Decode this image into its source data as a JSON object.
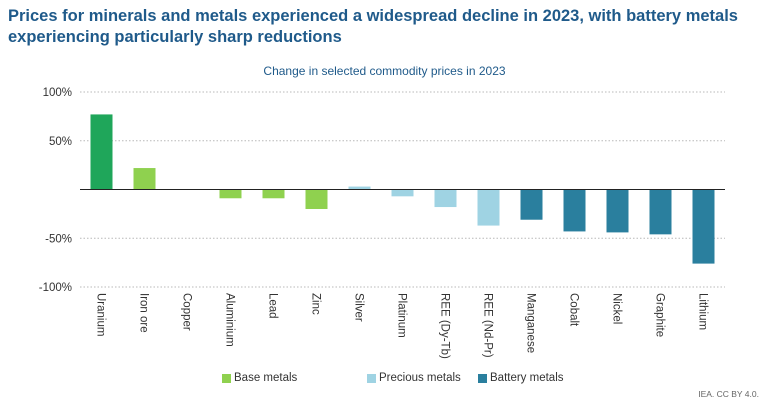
{
  "title": "Prices for minerals and metals experienced a widespread decline in 2023, with battery metals experiencing particularly sharp reductions",
  "credit": "IEA. CC BY 4.0.",
  "chart_data": {
    "type": "bar",
    "title": "Change in selected commodity prices in 2023",
    "xlabel": "",
    "ylabel": "",
    "ylim": [
      -100,
      100
    ],
    "yticks": [
      100,
      50,
      0,
      -50,
      -100
    ],
    "ytick_labels": [
      "100%",
      "50%",
      "",
      "-50%",
      "-100%"
    ],
    "grid": true,
    "legend_position": "bottom",
    "categories": [
      "Uranium",
      "Iron ore",
      "Copper",
      "Aluminium",
      "Lead",
      "Zinc",
      "Silver",
      "Platinum",
      "REE (Dy-Tb)",
      "REE (Nd-Pr)",
      "Manganese",
      "Cobalt",
      "Nickel",
      "Graphite",
      "Lithium"
    ],
    "values": [
      77,
      22,
      0,
      -9,
      -9,
      -20,
      3,
      -7,
      -18,
      -37,
      -31,
      -43,
      -44,
      -46,
      -76
    ],
    "groups": [
      "uranium",
      "iron",
      "base",
      "base",
      "base",
      "base",
      "precious",
      "precious",
      "precious",
      "precious",
      "battery",
      "battery",
      "battery",
      "battery",
      "battery"
    ],
    "group_colors": {
      "uranium": "#1fa65a",
      "iron": "#8fd14f",
      "base": "#8fd14f",
      "precious": "#9fd3e3",
      "battery": "#2a7f9e"
    },
    "legend": [
      {
        "name": "Base metals",
        "color": "#8fd14f"
      },
      {
        "name": "Precious metals",
        "color": "#9fd3e3"
      },
      {
        "name": "Battery metals",
        "color": "#2a7f9e"
      }
    ]
  }
}
